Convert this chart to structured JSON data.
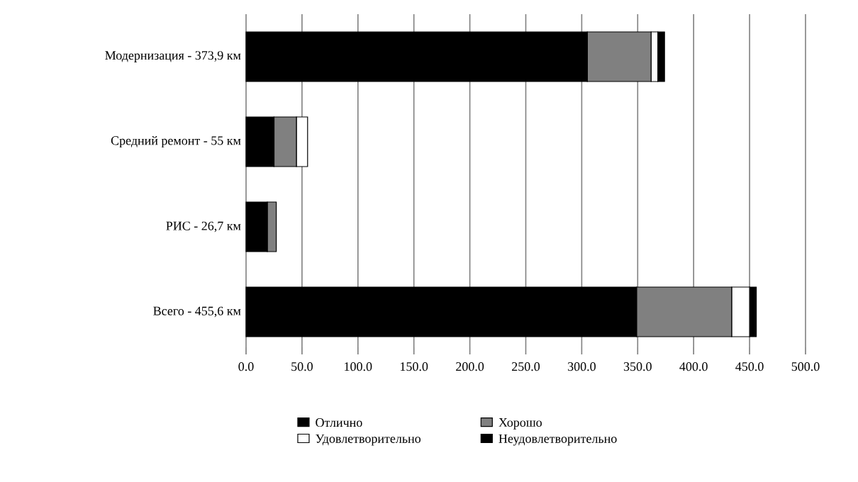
{
  "chart_data": {
    "type": "bar",
    "orientation": "horizontal",
    "stacked": true,
    "categories": [
      "Модернизация - 373,9 км",
      "Средний ремонт - 55 км",
      "РИС - 26,7 км",
      "Всего - 455,6 км"
    ],
    "series": [
      {
        "name": "Отлично",
        "color": "#000000",
        "values": [
          305,
          25,
          19,
          349
        ]
      },
      {
        "name": "Хорошо",
        "color": "#808080",
        "values": [
          57,
          20,
          8,
          85
        ]
      },
      {
        "name": "Удовлетворительно",
        "color": "#ffffff",
        "values": [
          6,
          10,
          0,
          16
        ]
      },
      {
        "name": "Неудовлетворительно",
        "color": "#000000",
        "values": [
          6,
          0,
          0,
          6
        ]
      }
    ],
    "xlim": [
      0,
      500
    ],
    "xticks": [
      {
        "value": 0,
        "label": "0.0"
      },
      {
        "value": 50,
        "label": "50.0"
      },
      {
        "value": 100,
        "label": "100.0"
      },
      {
        "value": 150,
        "label": "150.0"
      },
      {
        "value": 200,
        "label": "200.0"
      },
      {
        "value": 250,
        "label": "250.0"
      },
      {
        "value": 300,
        "label": "300.0"
      },
      {
        "value": 350,
        "label": "350.0"
      },
      {
        "value": 400,
        "label": "400.0"
      },
      {
        "value": 450,
        "label": "450.0"
      },
      {
        "value": 500,
        "label": "500.0"
      }
    ],
    "grid": "x",
    "legend": "bottom"
  }
}
